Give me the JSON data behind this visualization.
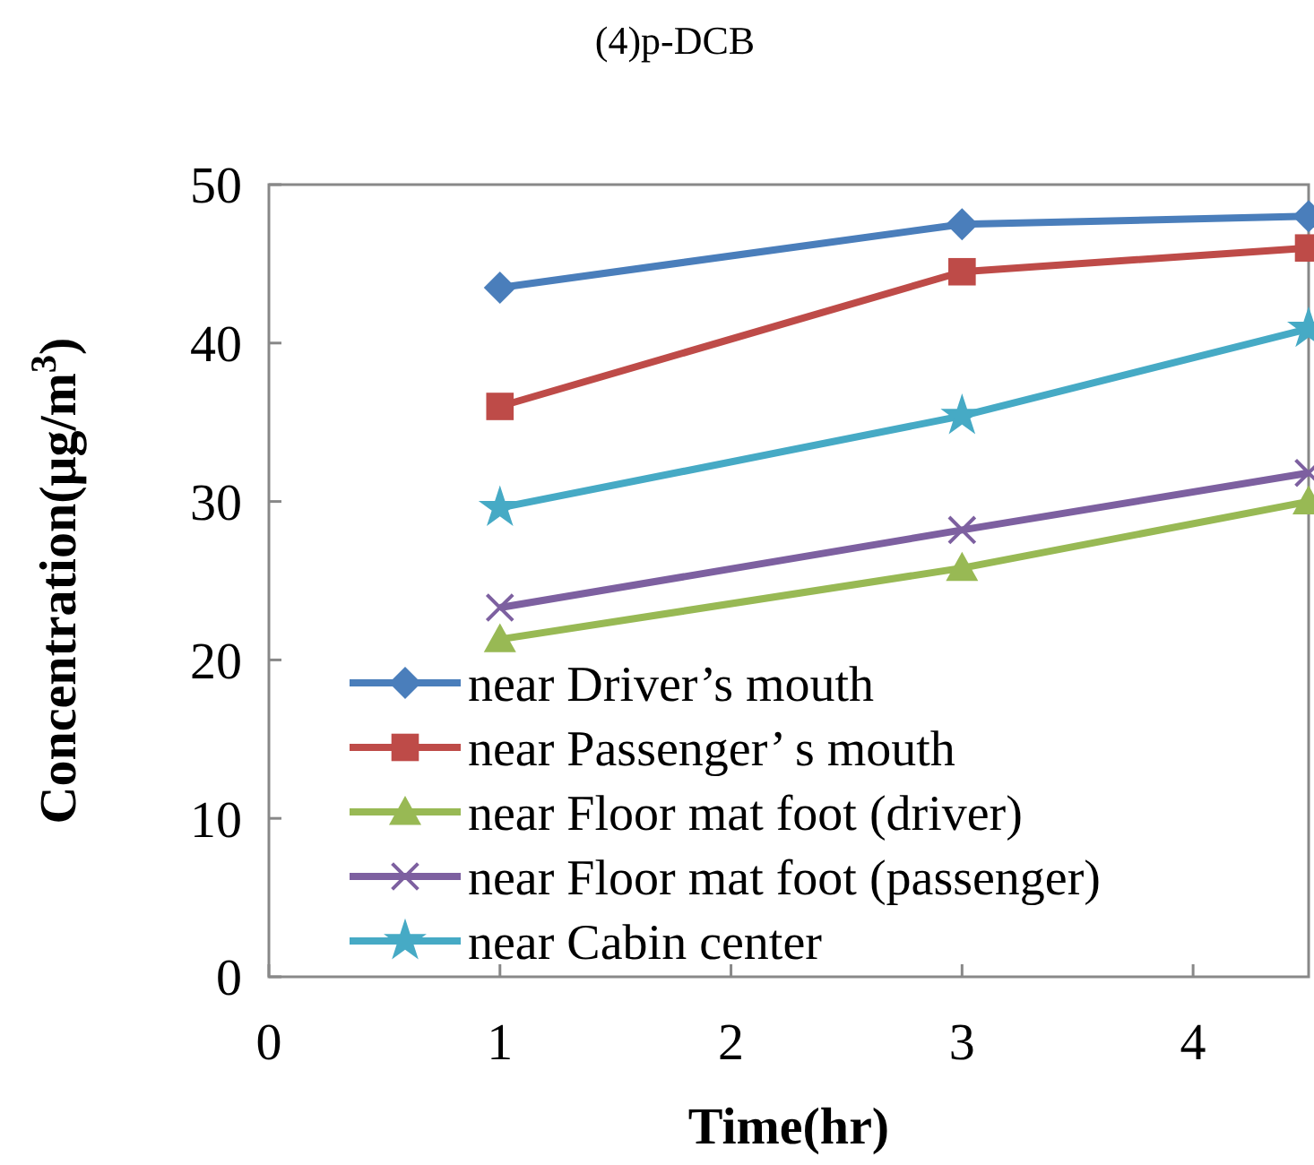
{
  "chart_data": {
    "type": "line",
    "title": "(4)p-DCB",
    "xlabel": "Time(hr)",
    "ylabel": "Concentration(μg/m$^{3}$)",
    "x": [
      1,
      3,
      4.5
    ],
    "xlim": [
      0,
      4.5
    ],
    "xticks": [
      0,
      1,
      2,
      3,
      4
    ],
    "ylim": [
      0,
      50
    ],
    "yticks": [
      0,
      10,
      20,
      30,
      40,
      50
    ],
    "grid": false,
    "legend": "bottom left",
    "series": [
      {
        "name": "near Driver’s mouth",
        "color": "#4a7ebb",
        "marker": "diamond",
        "values": [
          43.5,
          47.5,
          48
        ]
      },
      {
        "name": "near Passenger’ s mouth",
        "color": "#be4b48",
        "marker": "square",
        "values": [
          36,
          44.5,
          46
        ]
      },
      {
        "name": "near Floor mat foot (driver)",
        "color": "#98b954",
        "marker": "triangle",
        "values": [
          21.3,
          25.8,
          30
        ]
      },
      {
        "name": "near Floor mat foot (passenger)",
        "color": "#7d60a0",
        "marker": "cross",
        "values": [
          23.3,
          28.2,
          31.8
        ]
      },
      {
        "name": "near Cabin center",
        "color": "#46aac5",
        "marker": "star",
        "values": [
          29.6,
          35.4,
          40.9
        ]
      }
    ]
  }
}
